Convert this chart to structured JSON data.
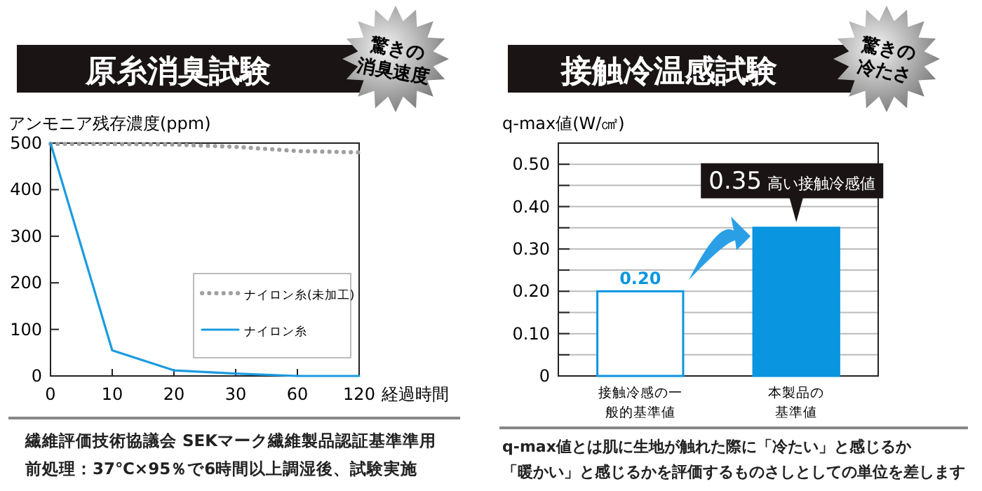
{
  "chart_data": [
    {
      "type": "line",
      "title": "原糸消臭試験",
      "ylabel": "アンモニア残存濃度(ppm)",
      "xlabel": "経過時間",
      "categories": [
        "0",
        "10",
        "20",
        "30",
        "60",
        "120"
      ],
      "series": [
        {
          "name": "ナイロン糸(未加工)",
          "color": "#a0a0a0",
          "line_style": "dotted",
          "values": [
            498,
            498,
            497,
            492,
            483,
            480
          ]
        },
        {
          "name": "ナイロン糸",
          "color": "#1a9be0",
          "line_style": "solid",
          "values": [
            500,
            55,
            12,
            5,
            0,
            0
          ]
        }
      ],
      "ylim": [
        0,
        500
      ],
      "yticks": [
        0,
        100,
        200,
        300,
        400,
        500
      ],
      "grid": false,
      "legend": "bottom right",
      "marker": "none",
      "annotations": [
        "驚きの消臭速度",
        "繊維評価技術協議会 SEKマーク繊維製品認証基準準用",
        "前処理：37℃×95％で6時間以上調湿後、試験実施"
      ]
    },
    {
      "type": "bar",
      "title": "接触冷温感試験",
      "ylabel": "q-max値(W/㎠)",
      "categories": [
        "接触冷感の一般的基準値",
        "本製品の基準値"
      ],
      "values": [
        0.2,
        0.35
      ],
      "colors": [
        "#ffffff",
        "#0a95e0"
      ],
      "value_labels": [
        "0.20",
        null
      ],
      "ylim": [
        0,
        0.55
      ],
      "yticks": [
        0,
        {
          "value": 0.05,
          "label": null
        },
        {
          "value": 0.1,
          "label": "0.10"
        },
        {
          "value": 0.15,
          "label": null
        },
        {
          "value": 0.2,
          "label": "0.20"
        },
        {
          "value": 0.25,
          "label": null
        },
        {
          "value": 0.3,
          "label": "0.30"
        },
        {
          "value": 0.35,
          "label": null
        },
        {
          "value": 0.4,
          "label": "0.40"
        },
        {
          "value": 0.45,
          "label": null
        },
        {
          "value": 0.5,
          "label": "0.50"
        }
      ],
      "grid": "y",
      "annotations": [
        "驚きの冷たさ",
        {
          "text": "0.35 高い接触冷感値",
          "x": "本製品の基準値",
          "y": 0.35
        },
        "q-max値とは肌に生地が触れた際に「冷たい」と感じるか",
        "「暖かい」と感じるかを評価するものさしとしての単位を差します"
      ]
    }
  ]
}
